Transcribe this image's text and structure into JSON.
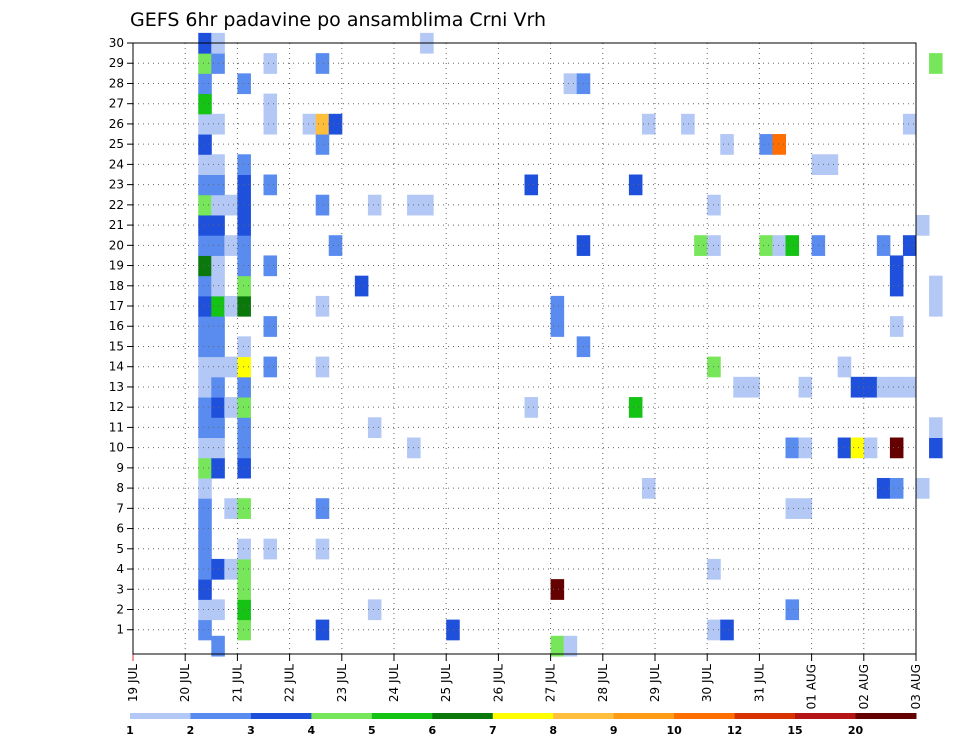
{
  "chart_data": {
    "type": "heatmap",
    "title": "GEFS 6hr padavine po ansamblima Crni Vrh",
    "xlabel": "",
    "ylabel": "",
    "y_ticks": [
      1,
      2,
      3,
      4,
      5,
      6,
      7,
      8,
      9,
      10,
      11,
      12,
      13,
      14,
      15,
      16,
      17,
      18,
      19,
      20,
      21,
      22,
      23,
      24,
      25,
      26,
      27,
      28,
      29,
      30
    ],
    "ylim": [
      0,
      30
    ],
    "x_ticks": [
      "19 JUL",
      "20 JUL",
      "21 JUL",
      "22 JUL",
      "23 JUL",
      "24 JUL",
      "25 JUL",
      "26 JUL",
      "27 JUL",
      "28 JUL",
      "29 JUL",
      "30 JUL",
      "31 JUL",
      "01 AUG",
      "02 AUG",
      "03 AUG"
    ],
    "xlim_days": [
      0,
      15
    ],
    "grid": true,
    "colorbar": {
      "labels": [
        "1",
        "2",
        "3",
        "4",
        "5",
        "6",
        "7",
        "8",
        "9",
        "10",
        "12",
        "15",
        "20"
      ],
      "colors": [
        "#b4c8f5",
        "#5a8cf0",
        "#1e50dc",
        "#78e65a",
        "#14c314",
        "#0a780a",
        "#ffff00",
        "#ffbe3c",
        "#ff9b14",
        "#ff6e00",
        "#d73200",
        "#b41414",
        "#640000"
      ]
    },
    "cells": [
      {
        "day": 1,
        "slot": 3,
        "m": 0,
        "c": 1
      },
      {
        "day": 1,
        "slot": 3,
        "m": 1,
        "c": 0
      },
      {
        "day": 1,
        "slot": 3,
        "m": 2,
        "c": 2
      },
      {
        "day": 1,
        "slot": 3,
        "m": 3,
        "c": 1
      },
      {
        "day": 1,
        "slot": 3,
        "m": 4,
        "c": 1
      },
      {
        "day": 1,
        "slot": 3,
        "m": 5,
        "c": 1
      },
      {
        "day": 1,
        "slot": 3,
        "m": 6,
        "c": 1
      },
      {
        "day": 1,
        "slot": 3,
        "m": 7,
        "c": 0
      },
      {
        "day": 1,
        "slot": 3,
        "m": 8,
        "c": 3
      },
      {
        "day": 1,
        "slot": 3,
        "m": 9,
        "c": 0
      },
      {
        "day": 1,
        "slot": 3,
        "m": 10,
        "c": 1
      },
      {
        "day": 1,
        "slot": 3,
        "m": 11,
        "c": 1
      },
      {
        "day": 1,
        "slot": 3,
        "m": 12,
        "c": 0
      },
      {
        "day": 1,
        "slot": 3,
        "m": 13,
        "c": 0
      },
      {
        "day": 1,
        "slot": 3,
        "m": 14,
        "c": 1
      },
      {
        "day": 1,
        "slot": 3,
        "m": 15,
        "c": 1
      },
      {
        "day": 1,
        "slot": 3,
        "m": 16,
        "c": 2
      },
      {
        "day": 1,
        "slot": 3,
        "m": 17,
        "c": 1
      },
      {
        "day": 1,
        "slot": 3,
        "m": 18,
        "c": 5
      },
      {
        "day": 1,
        "slot": 3,
        "m": 19,
        "c": 1
      },
      {
        "day": 1,
        "slot": 3,
        "m": 20,
        "c": 2
      },
      {
        "day": 1,
        "slot": 3,
        "m": 21,
        "c": 3
      },
      {
        "day": 1,
        "slot": 3,
        "m": 22,
        "c": 1
      },
      {
        "day": 1,
        "slot": 3,
        "m": 23,
        "c": 0
      },
      {
        "day": 1,
        "slot": 3,
        "m": 24,
        "c": 2
      },
      {
        "day": 1,
        "slot": 3,
        "m": 25,
        "c": 0
      },
      {
        "day": 1,
        "slot": 3,
        "m": 26,
        "c": 4
      },
      {
        "day": 1,
        "slot": 3,
        "m": 27,
        "c": 1
      },
      {
        "day": 1,
        "slot": 3,
        "m": 28,
        "c": 3
      },
      {
        "day": 1,
        "slot": 3,
        "m": 29,
        "c": 2
      },
      {
        "day": 1,
        "slot": 4,
        "m": -1,
        "c": 1
      },
      {
        "day": 1,
        "slot": 4,
        "m": 1,
        "c": 0
      },
      {
        "day": 1,
        "slot": 4,
        "m": 3,
        "c": 2
      },
      {
        "day": 1,
        "slot": 4,
        "m": 8,
        "c": 2
      },
      {
        "day": 1,
        "slot": 4,
        "m": 9,
        "c": 0
      },
      {
        "day": 1,
        "slot": 4,
        "m": 10,
        "c": 1
      },
      {
        "day": 1,
        "slot": 4,
        "m": 11,
        "c": 2
      },
      {
        "day": 1,
        "slot": 4,
        "m": 12,
        "c": 1
      },
      {
        "day": 1,
        "slot": 4,
        "m": 13,
        "c": 0
      },
      {
        "day": 1,
        "slot": 4,
        "m": 14,
        "c": 1
      },
      {
        "day": 1,
        "slot": 4,
        "m": 15,
        "c": 1
      },
      {
        "day": 1,
        "slot": 4,
        "m": 16,
        "c": 4
      },
      {
        "day": 1,
        "slot": 4,
        "m": 17,
        "c": 0
      },
      {
        "day": 1,
        "slot": 4,
        "m": 18,
        "c": 0
      },
      {
        "day": 1,
        "slot": 4,
        "m": 19,
        "c": 1
      },
      {
        "day": 1,
        "slot": 4,
        "m": 20,
        "c": 2
      },
      {
        "day": 1,
        "slot": 4,
        "m": 21,
        "c": 0
      },
      {
        "day": 1,
        "slot": 4,
        "m": 22,
        "c": 1
      },
      {
        "day": 1,
        "slot": 4,
        "m": 23,
        "c": 0
      },
      {
        "day": 1,
        "slot": 4,
        "m": 25,
        "c": 0
      },
      {
        "day": 1,
        "slot": 4,
        "m": 28,
        "c": 1
      },
      {
        "day": 1,
        "slot": 4,
        "m": 29,
        "c": 0
      },
      {
        "day": 2,
        "slot": 1,
        "m": 3,
        "c": 0
      },
      {
        "day": 2,
        "slot": 1,
        "m": 6,
        "c": 0
      },
      {
        "day": 2,
        "slot": 1,
        "m": 11,
        "c": 0
      },
      {
        "day": 2,
        "slot": 1,
        "m": 13,
        "c": 0
      },
      {
        "day": 2,
        "slot": 1,
        "m": 16,
        "c": 0
      },
      {
        "day": 2,
        "slot": 1,
        "m": 19,
        "c": 0
      },
      {
        "day": 2,
        "slot": 1,
        "m": 21,
        "c": 0
      },
      {
        "day": 2,
        "slot": 2,
        "m": 0,
        "c": 3
      },
      {
        "day": 2,
        "slot": 2,
        "m": 1,
        "c": 4
      },
      {
        "day": 2,
        "slot": 2,
        "m": 2,
        "c": 3
      },
      {
        "day": 2,
        "slot": 2,
        "m": 3,
        "c": 3
      },
      {
        "day": 2,
        "slot": 2,
        "m": 4,
        "c": 0
      },
      {
        "day": 2,
        "slot": 2,
        "m": 6,
        "c": 3
      },
      {
        "day": 2,
        "slot": 2,
        "m": 8,
        "c": 2
      },
      {
        "day": 2,
        "slot": 2,
        "m": 9,
        "c": 1
      },
      {
        "day": 2,
        "slot": 2,
        "m": 10,
        "c": 1
      },
      {
        "day": 2,
        "slot": 2,
        "m": 11,
        "c": 3
      },
      {
        "day": 2,
        "slot": 2,
        "m": 12,
        "c": 1
      },
      {
        "day": 2,
        "slot": 2,
        "m": 13,
        "c": 6
      },
      {
        "day": 2,
        "slot": 2,
        "m": 14,
        "c": 0
      },
      {
        "day": 2,
        "slot": 2,
        "m": 16,
        "c": 5
      },
      {
        "day": 2,
        "slot": 2,
        "m": 17,
        "c": 3
      },
      {
        "day": 2,
        "slot": 2,
        "m": 18,
        "c": 1
      },
      {
        "day": 2,
        "slot": 2,
        "m": 19,
        "c": 1
      },
      {
        "day": 2,
        "slot": 2,
        "m": 20,
        "c": 2
      },
      {
        "day": 2,
        "slot": 2,
        "m": 21,
        "c": 2
      },
      {
        "day": 2,
        "slot": 2,
        "m": 22,
        "c": 2
      },
      {
        "day": 2,
        "slot": 2,
        "m": 23,
        "c": 1
      },
      {
        "day": 2,
        "slot": 2,
        "m": 27,
        "c": 1
      },
      {
        "day": 3,
        "slot": 0,
        "m": 4,
        "c": 0
      },
      {
        "day": 3,
        "slot": 0,
        "m": 13,
        "c": 1
      },
      {
        "day": 3,
        "slot": 0,
        "m": 15,
        "c": 1
      },
      {
        "day": 3,
        "slot": 0,
        "m": 18,
        "c": 1
      },
      {
        "day": 3,
        "slot": 0,
        "m": 22,
        "c": 1
      },
      {
        "day": 3,
        "slot": 0,
        "m": 25,
        "c": 0
      },
      {
        "day": 3,
        "slot": 0,
        "m": 26,
        "c": 0
      },
      {
        "day": 3,
        "slot": 0,
        "m": 28,
        "c": 0
      },
      {
        "day": 3,
        "slot": 3,
        "m": 25,
        "c": 0
      },
      {
        "day": 4,
        "slot": 0,
        "m": 0,
        "c": 2
      },
      {
        "day": 4,
        "slot": 0,
        "m": 4,
        "c": 0
      },
      {
        "day": 4,
        "slot": 0,
        "m": 6,
        "c": 1
      },
      {
        "day": 4,
        "slot": 0,
        "m": 13,
        "c": 0
      },
      {
        "day": 4,
        "slot": 0,
        "m": 16,
        "c": 0
      },
      {
        "day": 4,
        "slot": 0,
        "m": 21,
        "c": 1
      },
      {
        "day": 4,
        "slot": 0,
        "m": 24,
        "c": 1
      },
      {
        "day": 4,
        "slot": 0,
        "m": 25,
        "c": 7
      },
      {
        "day": 4,
        "slot": 0,
        "m": 28,
        "c": 1
      },
      {
        "day": 4,
        "slot": 1,
        "m": 19,
        "c": 1
      },
      {
        "day": 4,
        "slot": 1,
        "m": 25,
        "c": 2
      },
      {
        "day": 4,
        "slot": 3,
        "m": 17,
        "c": 2
      },
      {
        "day": 5,
        "slot": 0,
        "m": 1,
        "c": 0
      },
      {
        "day": 5,
        "slot": 0,
        "m": 10,
        "c": 0
      },
      {
        "day": 5,
        "slot": 0,
        "m": 21,
        "c": 0
      },
      {
        "day": 6,
        "slot": 0,
        "m": 21,
        "c": 0
      },
      {
        "day": 6,
        "slot": 0,
        "m": 29,
        "c": 0
      },
      {
        "day": 5,
        "slot": 3,
        "m": 9,
        "c": 0
      },
      {
        "day": 5,
        "slot": 3,
        "m": 21,
        "c": 0
      },
      {
        "day": 6,
        "slot": 2,
        "m": 0,
        "c": 2
      },
      {
        "day": 8,
        "slot": 0,
        "m": 11,
        "c": 0
      },
      {
        "day": 8,
        "slot": 0,
        "m": 22,
        "c": 2
      },
      {
        "day": 8,
        "slot": 2,
        "m": 2,
        "c": 12
      },
      {
        "day": 8,
        "slot": 2,
        "m": 15,
        "c": 1
      },
      {
        "day": 8,
        "slot": 2,
        "m": 16,
        "c": 1
      },
      {
        "day": 8,
        "slot": 2,
        "m": -1,
        "c": 3
      },
      {
        "day": 8,
        "slot": 3,
        "m": -1,
        "c": 0
      },
      {
        "day": 8,
        "slot": 3,
        "m": 27,
        "c": 0
      },
      {
        "day": 9,
        "slot": 0,
        "m": 14,
        "c": 1
      },
      {
        "day": 9,
        "slot": 0,
        "m": 19,
        "c": 2
      },
      {
        "day": 9,
        "slot": 0,
        "m": 27,
        "c": 1
      },
      {
        "day": 10,
        "slot": 0,
        "m": 22,
        "c": 2
      },
      {
        "day": 10,
        "slot": 0,
        "m": 11,
        "c": 4
      },
      {
        "day": 10,
        "slot": 1,
        "m": 25,
        "c": 0
      },
      {
        "day": 10,
        "slot": 1,
        "m": 7,
        "c": 0
      },
      {
        "day": 11,
        "slot": 0,
        "m": 25,
        "c": 0
      },
      {
        "day": 11,
        "slot": 1,
        "m": 19,
        "c": 3
      },
      {
        "day": 11,
        "slot": 2,
        "m": 0,
        "c": 0
      },
      {
        "day": 11,
        "slot": 2,
        "m": 13,
        "c": 3
      },
      {
        "day": 11,
        "slot": 2,
        "m": 19,
        "c": 0
      },
      {
        "day": 11,
        "slot": 2,
        "m": 21,
        "c": 0
      },
      {
        "day": 11,
        "slot": 2,
        "m": 3,
        "c": 0
      },
      {
        "day": 11,
        "slot": 3,
        "m": 0,
        "c": 2
      },
      {
        "day": 11,
        "slot": 3,
        "m": 24,
        "c": 0
      },
      {
        "day": 12,
        "slot": 0,
        "m": 12,
        "c": 0
      },
      {
        "day": 12,
        "slot": 1,
        "m": 12,
        "c": 0
      },
      {
        "day": 12,
        "slot": 2,
        "m": 24,
        "c": 1
      },
      {
        "day": 12,
        "slot": 2,
        "m": 19,
        "c": 3
      },
      {
        "day": 12,
        "slot": 3,
        "m": 24,
        "c": 9
      },
      {
        "day": 12,
        "slot": 3,
        "m": 19,
        "c": 0
      },
      {
        "day": 13,
        "slot": 0,
        "m": 1,
        "c": 1
      },
      {
        "day": 13,
        "slot": 0,
        "m": 6,
        "c": 0
      },
      {
        "day": 13,
        "slot": 0,
        "m": 9,
        "c": 1
      },
      {
        "day": 13,
        "slot": 0,
        "m": 19,
        "c": 4
      },
      {
        "day": 13,
        "slot": 1,
        "m": 6,
        "c": 0
      },
      {
        "day": 13,
        "slot": 1,
        "m": 9,
        "c": 0
      },
      {
        "day": 13,
        "slot": 1,
        "m": 12,
        "c": 0
      },
      {
        "day": 13,
        "slot": 2,
        "m": 19,
        "c": 1
      },
      {
        "day": 13,
        "slot": 2,
        "m": 23,
        "c": 0
      },
      {
        "day": 13,
        "slot": 3,
        "m": 23,
        "c": 0
      },
      {
        "day": 14,
        "slot": 0,
        "m": 9,
        "c": 2
      },
      {
        "day": 14,
        "slot": 0,
        "m": 13,
        "c": 0
      },
      {
        "day": 14,
        "slot": 1,
        "m": 9,
        "c": 6
      },
      {
        "day": 14,
        "slot": 1,
        "m": 12,
        "c": 2
      },
      {
        "day": 14,
        "slot": 2,
        "m": 9,
        "c": 0
      },
      {
        "day": 14,
        "slot": 2,
        "m": 12,
        "c": 2
      },
      {
        "day": 14,
        "slot": 3,
        "m": 7,
        "c": 2
      },
      {
        "day": 14,
        "slot": 3,
        "m": 19,
        "c": 1
      },
      {
        "day": 14,
        "slot": 3,
        "m": 12,
        "c": 0
      },
      {
        "day": 15,
        "slot": 0,
        "m": 7,
        "c": 1
      },
      {
        "day": 15,
        "slot": 0,
        "m": 9,
        "c": 12
      },
      {
        "day": 15,
        "slot": 0,
        "m": 12,
        "c": 0
      },
      {
        "day": 15,
        "slot": 0,
        "m": 15,
        "c": 0
      },
      {
        "day": 15,
        "slot": 0,
        "m": 17,
        "c": 2
      },
      {
        "day": 15,
        "slot": 0,
        "m": 18,
        "c": 2
      },
      {
        "day": 15,
        "slot": 1,
        "m": 12,
        "c": 0
      },
      {
        "day": 15,
        "slot": 1,
        "m": 19,
        "c": 2
      },
      {
        "day": 15,
        "slot": 1,
        "m": 25,
        "c": 0
      },
      {
        "day": 15,
        "slot": 2,
        "m": 7,
        "c": 0
      },
      {
        "day": 15,
        "slot": 2,
        "m": 20,
        "c": 0
      },
      {
        "day": 15,
        "slot": 3,
        "m": 9,
        "c": 2
      },
      {
        "day": 15,
        "slot": 3,
        "m": 10,
        "c": 0
      },
      {
        "day": 15,
        "slot": 3,
        "m": 16,
        "c": 0
      },
      {
        "day": 15,
        "slot": 3,
        "m": 17,
        "c": 0
      },
      {
        "day": 15,
        "slot": 3,
        "m": 28,
        "c": 3
      }
    ]
  }
}
